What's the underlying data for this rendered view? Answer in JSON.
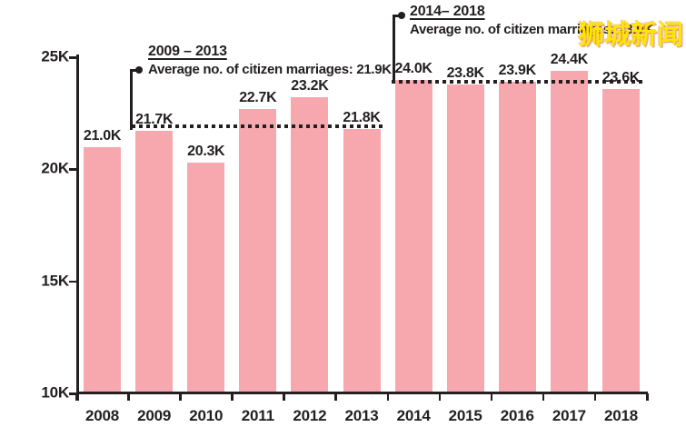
{
  "chart_data": {
    "type": "bar",
    "title": "",
    "xlabel": "",
    "ylabel": "",
    "categories": [
      "2008",
      "2009",
      "2010",
      "2011",
      "2012",
      "2013",
      "2014",
      "2015",
      "2016",
      "2017",
      "2018"
    ],
    "values": [
      21.0,
      21.7,
      20.3,
      22.7,
      23.2,
      21.8,
      24.0,
      23.8,
      23.9,
      24.4,
      23.6
    ],
    "bar_labels": [
      "21.0K",
      "21.7K",
      "20.3K",
      "22.7K",
      "23.2K",
      "21.8K",
      "24.0K",
      "23.8K",
      "23.9K",
      "24.4K",
      "23.6K"
    ],
    "ylim": [
      10,
      25
    ],
    "yticks": [
      {
        "v": 25,
        "label": "25K"
      },
      {
        "v": 20,
        "label": "20K"
      },
      {
        "v": 15,
        "label": "15K"
      },
      {
        "v": 10,
        "label": "10K"
      }
    ],
    "grid": "off",
    "bar_color": "#f7a7ae",
    "axis_color": "#231f20",
    "annotations": [
      {
        "period": "2009 – 2013",
        "label": "Average no. of citizen marriages: 21.9K",
        "avg_value": 21.9,
        "from": "2009",
        "to": "2013"
      },
      {
        "period": "2014– 2018",
        "label": "Average no. of citizen marriages: 23.9K",
        "avg_value": 23.9,
        "from": "2014",
        "to": "2018"
      }
    ]
  },
  "watermark": {
    "text": "狮城新闻",
    "color": "#ffe600"
  }
}
